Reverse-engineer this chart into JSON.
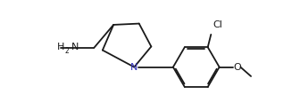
{
  "background_color": "#ffffff",
  "line_color": "#1a1a1a",
  "atom_color_N": "#3333bb",
  "figsize": [
    3.36,
    1.24
  ],
  "dpi": 100,
  "bond_lw": 1.3,
  "dbo": 0.055,
  "font_size": 8.0,
  "font_size_sub": 5.5,
  "xlim": [
    0.0,
    10.0
  ],
  "ylim": [
    1.5,
    6.0
  ]
}
